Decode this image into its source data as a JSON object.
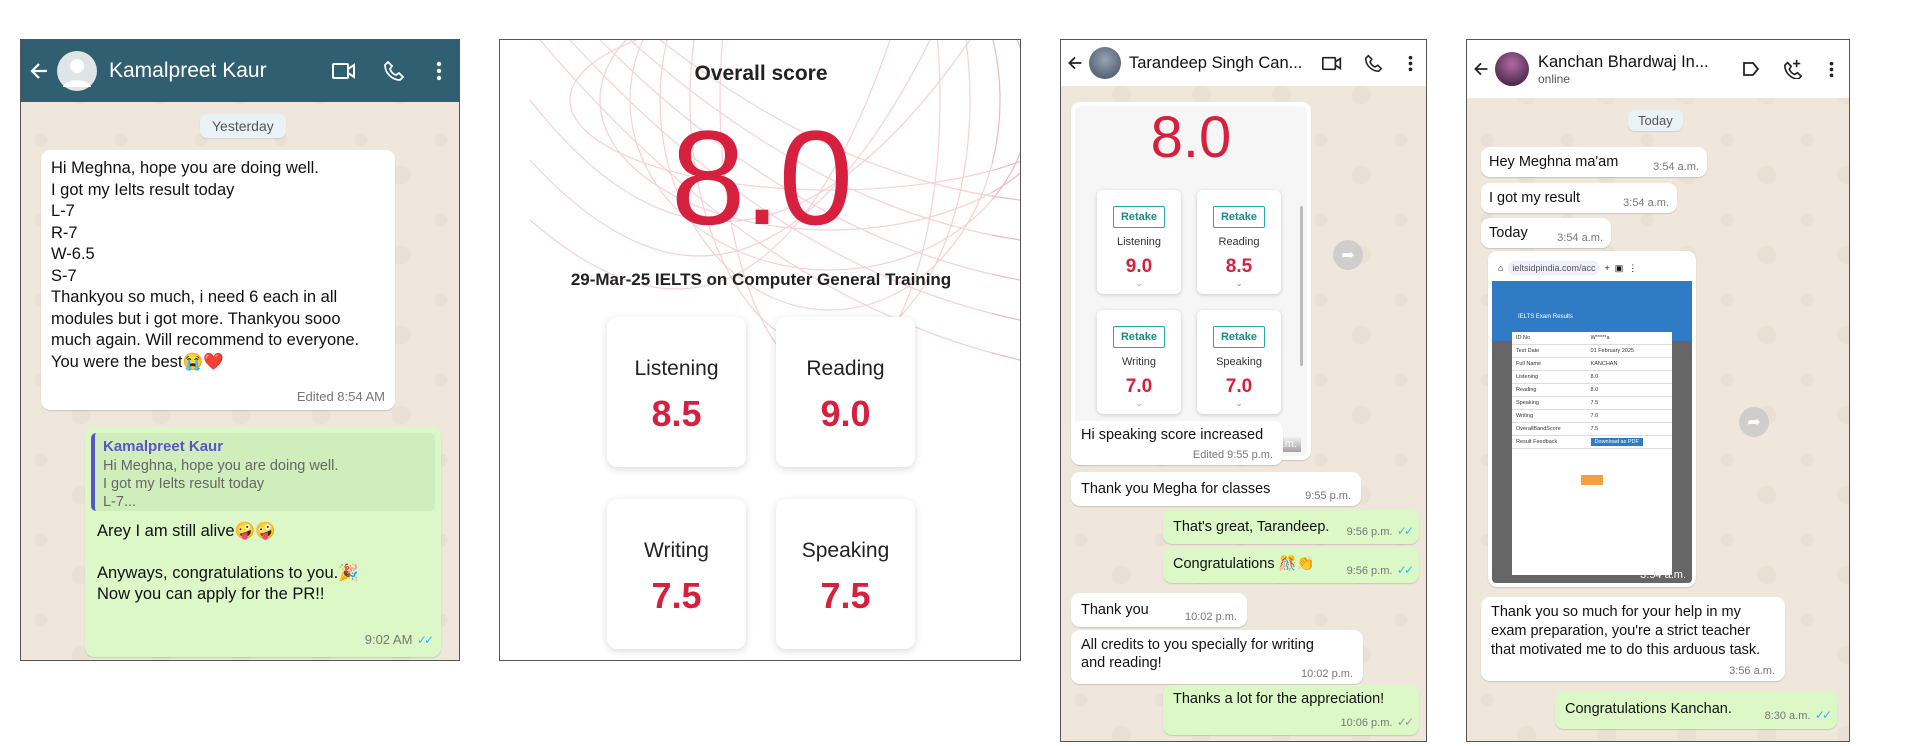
{
  "panel1": {
    "contact_name": "Kamalpreet Kaur",
    "day_chip": "Yesterday",
    "msg1": {
      "text": "Hi Meghna, hope you are doing well.\nI got my Ielts result today\nL-7\nR-7\nW-6.5\nS-7\nThankyou so much, i need 6 each in all modules but i got more. Thankyou sooo much again. Will recommend to everyone. You were the best😭❤️",
      "time": "Edited 8:54 AM"
    },
    "reply": {
      "quote_author": "Kamalpreet Kaur",
      "quote_text": "Hi Meghna, hope you are doing well.\nI got my Ielts result today\nL-7...",
      "line1": "Arey I am still alive🤪🤪",
      "line2": "Anyways, congratulations to you.🎉\n Now you can apply for the PR!!",
      "time": "9:02 AM"
    }
  },
  "panel2": {
    "heading": "Overall score",
    "overall": "8.0",
    "test_info": "29-Mar-25 IELTS on Computer General Training",
    "scores": [
      {
        "label": "Listening",
        "value": "8.5"
      },
      {
        "label": "Reading",
        "value": "9.0"
      },
      {
        "label": "Writing",
        "value": "7.5"
      },
      {
        "label": "Speaking",
        "value": "7.5"
      }
    ]
  },
  "panel3": {
    "contact_name": "Tarandeep Singh Can...",
    "image": {
      "overall": "8.0",
      "retake_label": "Retake",
      "cards": [
        {
          "label": "Listening",
          "value": "9.0"
        },
        {
          "label": "Reading",
          "value": "8.5"
        },
        {
          "label": "Writing",
          "value": "7.0"
        },
        {
          "label": "Speaking",
          "value": "7.0"
        }
      ],
      "time": "9:54 p.m."
    },
    "messages": [
      {
        "dir": "in",
        "text": "Hi speaking score increased",
        "time": "Edited 9:55 p.m."
      },
      {
        "dir": "in",
        "text": "Thank you Megha for classes",
        "time": "9:55 p.m."
      },
      {
        "dir": "out",
        "text": "That's great, Tarandeep.",
        "time": "9:56 p.m."
      },
      {
        "dir": "out",
        "text": "Congratulations 🎊👏",
        "time": "9:56 p.m."
      },
      {
        "dir": "in",
        "text": "Thank you",
        "time": "10:02 p.m."
      },
      {
        "dir": "in",
        "text": "All credits to you specially for writing and reading!",
        "time": "10:02 p.m."
      },
      {
        "dir": "out",
        "text": "Thanks a lot for the appreciation!",
        "time": "10:06 p.m."
      }
    ]
  },
  "panel4": {
    "contact_name": "Kanchan Bhardwaj In...",
    "status": "online",
    "day_chip": "Today",
    "messages": [
      {
        "text": "Hey Meghna ma'am",
        "time": "3:54 a.m."
      },
      {
        "text": "I got my result",
        "time": "3:54 a.m."
      },
      {
        "text": "Today",
        "time": "3:54 a.m."
      }
    ],
    "image": {
      "url_text": "ieltsidpindia.com/acc",
      "card_title": "IELTS Exam Results",
      "rows": [
        [
          "ID No",
          "W*****a"
        ],
        [
          "Test Date",
          "01 February 2025"
        ],
        [
          "Full Name",
          "KANCHAN"
        ],
        [
          "Listening",
          "8.0"
        ],
        [
          "Reading",
          "8.0"
        ],
        [
          "Speaking",
          "7.5"
        ],
        [
          "Writing",
          "7.0"
        ],
        [
          "OverallBandScore",
          "7.5"
        ],
        [
          "Result Feedback",
          ""
        ]
      ],
      "download_label": "Download as PDF",
      "time": "3:54 a.m."
    },
    "long_msg": {
      "text": "Thank you so much for your help in my exam preparation, you're a strict teacher that motivated me to do this arduous task.",
      "time": "3:56 a.m."
    },
    "reply": {
      "text": "Congratulations Kanchan.",
      "time": "8:30 a.m."
    }
  },
  "colors": {
    "teal_header": "#2f5f70",
    "score_red": "#d71f3e",
    "out_bubble": "#dcf8c6",
    "tick_blue": "#34b7f1"
  }
}
